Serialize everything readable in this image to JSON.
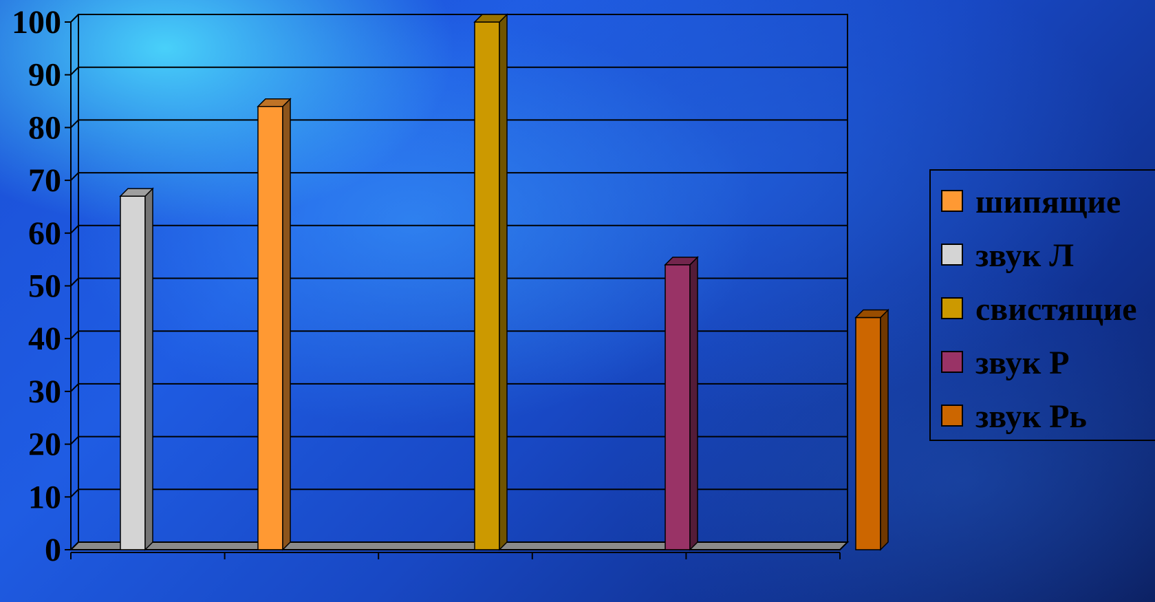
{
  "chart_data": {
    "type": "bar",
    "title": "",
    "xlabel": "",
    "ylabel": "",
    "ylim": [
      0,
      100
    ],
    "yticks": [
      "0",
      "10",
      "20",
      "30",
      "40",
      "50",
      "60",
      "70",
      "80",
      "90",
      "100"
    ],
    "grid": true,
    "three_d": true,
    "legend_position": "right",
    "series": [
      {
        "name": "шипящие",
        "value": 84,
        "color": "#ff9933"
      },
      {
        "name": "звук Л",
        "value": 67,
        "color": "#d4d4d4"
      },
      {
        "name": "свистящие",
        "value": 100,
        "color": "#cc9900"
      },
      {
        "name": "звук Р",
        "value": 54,
        "color": "#993366"
      },
      {
        "name": "звук Рь",
        "value": 44,
        "color": "#cc6600"
      }
    ]
  }
}
